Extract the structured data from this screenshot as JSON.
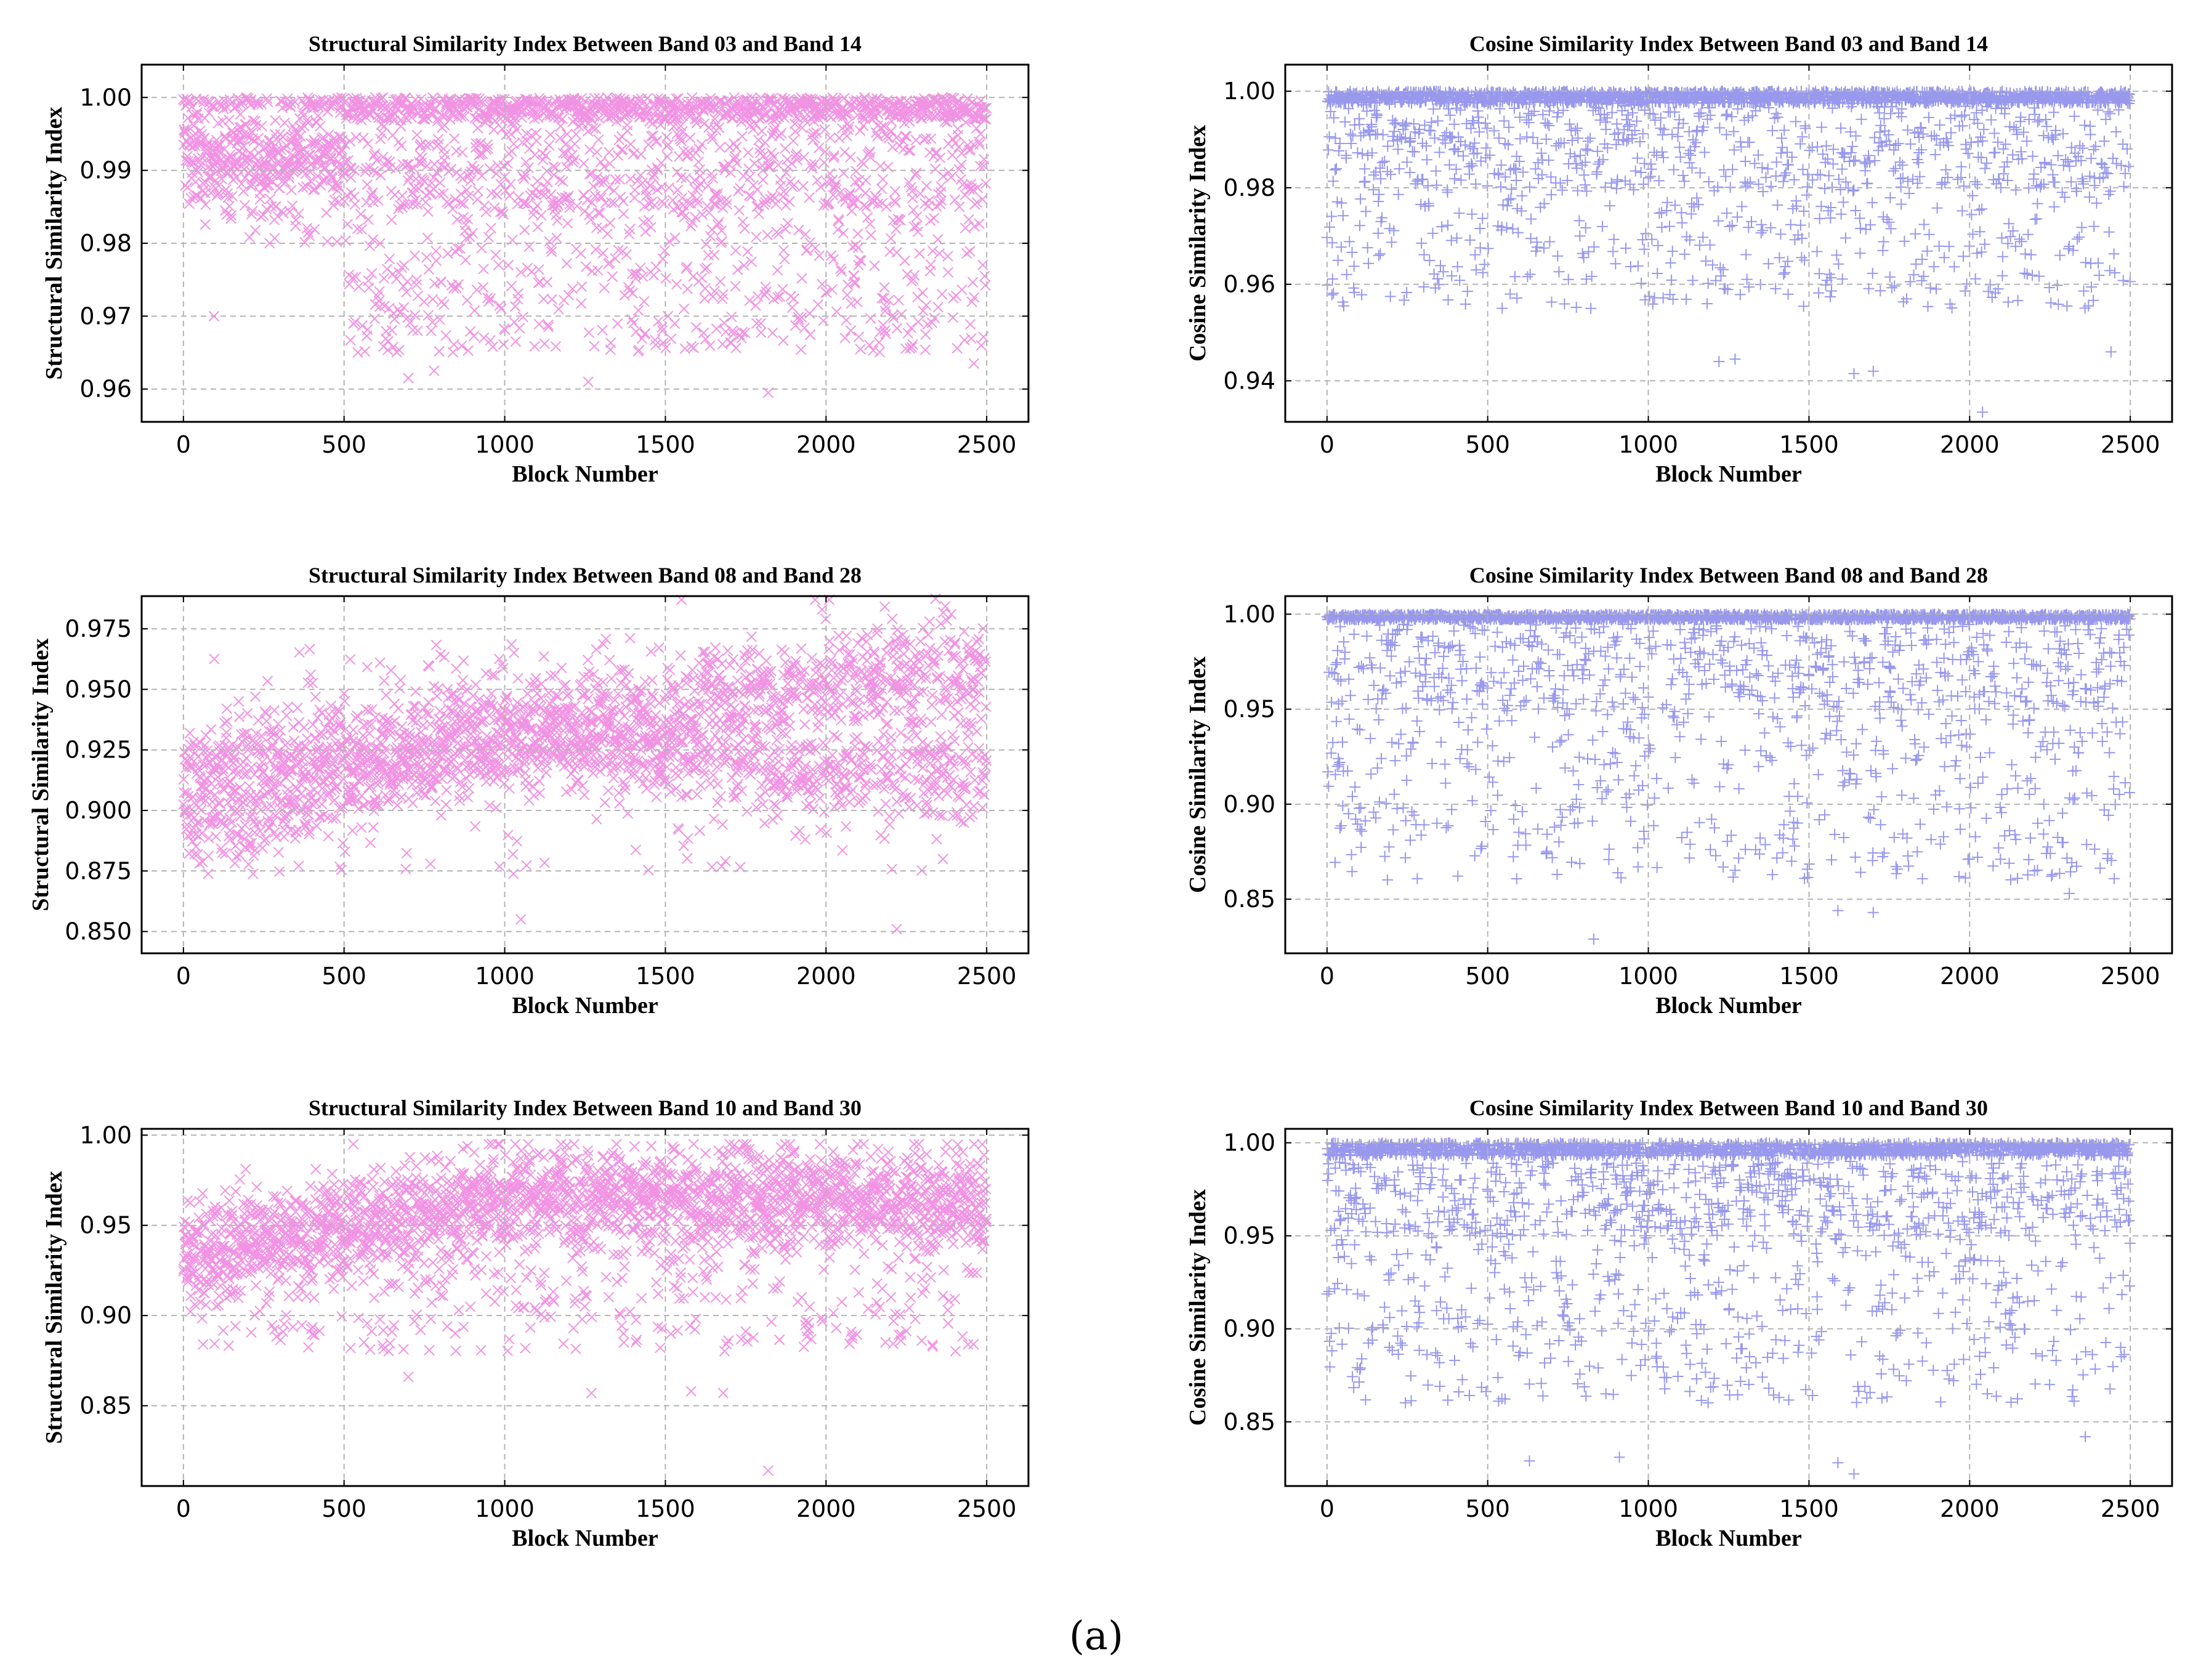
{
  "figure_caption": "(a)",
  "colors": {
    "ssim": "#e010c0",
    "cosine": "#1a1ad8",
    "grid": "#b4b4b4",
    "axis": "#000000"
  },
  "chart_data": [
    {
      "type": "scatter",
      "marker": "x",
      "color_key": "ssim",
      "title": "Structural Similarity Index Between Band 03 and Band 14",
      "xlabel": "Block Number",
      "ylabel": "Structural Similarity Index",
      "xlim": [
        -130,
        2630
      ],
      "ylim": [
        0.9555,
        1.0045
      ],
      "xticks": [
        0,
        500,
        1000,
        1500,
        2000,
        2500
      ],
      "yticks": [
        0.96,
        0.97,
        0.98,
        0.99,
        1.0
      ],
      "ytick_labels": [
        "0.96",
        "0.97",
        "0.98",
        "0.99",
        "1.00"
      ],
      "n_points": 2500,
      "pattern": "Early blocks 0-500 cluster at 0.985-0.995; dense band of points near 0.998-1.000 across all blocks; widely scattered values between 0.965 and 0.99 after block 500",
      "outliers": [
        [
          95,
          0.97
        ],
        [
          700,
          0.9615
        ],
        [
          780,
          0.9625
        ],
        [
          1260,
          0.961
        ],
        [
          1820,
          0.9595
        ],
        [
          2460,
          0.9635
        ]
      ],
      "grid": true
    },
    {
      "type": "scatter",
      "marker": "+",
      "color_key": "cosine",
      "title": "Cosine Similarity Index Between Band 03 and Band 14",
      "xlabel": "Block Number",
      "ylabel": "Cosine Similarity Index",
      "xlim": [
        -130,
        2630
      ],
      "ylim": [
        0.9315,
        1.0055
      ],
      "xticks": [
        0,
        500,
        1000,
        1500,
        2000,
        2500
      ],
      "yticks": [
        0.94,
        0.96,
        0.98,
        1.0
      ],
      "ytick_labels": [
        "0.94",
        "0.96",
        "0.98",
        "1.00"
      ],
      "n_points": 2500,
      "pattern": "Most blocks at 0.998-1.000; scattered values mostly between 0.96 and 0.995",
      "outliers": [
        [
          1220,
          0.944
        ],
        [
          1270,
          0.9445
        ],
        [
          1640,
          0.9415
        ],
        [
          1700,
          0.942
        ],
        [
          2040,
          0.9335
        ],
        [
          2440,
          0.946
        ]
      ],
      "grid": true
    },
    {
      "type": "scatter",
      "marker": "x",
      "color_key": "ssim",
      "title": "Structural Similarity Index Between Band 08 and Band 28",
      "xlabel": "Block Number",
      "ylabel": "Structural Similarity Index",
      "xlim": [
        -130,
        2630
      ],
      "ylim": [
        0.841,
        0.9885
      ],
      "xticks": [
        0,
        500,
        1000,
        1500,
        2000,
        2500
      ],
      "yticks": [
        0.85,
        0.875,
        0.9,
        0.925,
        0.95,
        0.975
      ],
      "ytick_labels": [
        "0.850",
        "0.875",
        "0.900",
        "0.925",
        "0.950",
        "0.975"
      ],
      "n_points": 2500,
      "pattern": "Two diverging bands: an upper band rising from about 0.915 at block 0 to about 0.96 at block 2500, and a lower band from about 0.89 rising to about 0.93 near block 1000 then about 0.915 after block 1800",
      "outliers": [
        [
          1050,
          0.855
        ],
        [
          2220,
          0.851
        ],
        [
          1550,
          0.987
        ]
      ],
      "grid": true
    },
    {
      "type": "scatter",
      "marker": "+",
      "color_key": "cosine",
      "title": "Cosine Similarity Index Between Band 08 and Band 28",
      "xlabel": "Block Number",
      "ylabel": "Cosine Similarity Index",
      "xlim": [
        -130,
        2630
      ],
      "ylim": [
        0.8215,
        1.0095
      ],
      "xticks": [
        0,
        500,
        1000,
        1500,
        2000,
        2500
      ],
      "yticks": [
        0.85,
        0.9,
        0.95,
        1.0
      ],
      "ytick_labels": [
        "0.85",
        "0.90",
        "0.95",
        "1.00"
      ],
      "n_points": 2500,
      "pattern": "Most blocks at 0.998-1.000; widely scattered values between 0.85 and 0.99",
      "outliers": [
        [
          830,
          0.829
        ],
        [
          1590,
          0.844
        ],
        [
          1700,
          0.843
        ],
        [
          2310,
          0.853
        ]
      ],
      "grid": true
    },
    {
      "type": "scatter",
      "marker": "x",
      "color_key": "ssim",
      "title": "Structural Similarity Index Between Band 10 and Band 30",
      "xlabel": "Block Number",
      "ylabel": "Structural Similarity Index",
      "xlim": [
        -130,
        2630
      ],
      "ylim": [
        0.8055,
        1.0035
      ],
      "xticks": [
        0,
        500,
        1000,
        1500,
        2000,
        2500
      ],
      "yticks": [
        0.85,
        0.9,
        0.95,
        1.0
      ],
      "ytick_labels": [
        "0.85",
        "0.90",
        "0.95",
        "1.00"
      ],
      "n_points": 2500,
      "pattern": "Dense band rising from about 0.935 at block 0 to about 0.965 around block 1000 and staying near 0.96 to block 2500; scattered points down to about 0.86",
      "outliers": [
        [
          1820,
          0.814
        ],
        [
          1580,
          0.858
        ],
        [
          1680,
          0.857
        ],
        [
          1270,
          0.857
        ],
        [
          700,
          0.866
        ]
      ],
      "grid": true
    },
    {
      "type": "scatter",
      "marker": "+",
      "color_key": "cosine",
      "title": "Cosine Similarity Index Between Band 10 and Band 30",
      "xlabel": "Block Number",
      "ylabel": "Cosine Similarity Index",
      "xlim": [
        -130,
        2630
      ],
      "ylim": [
        0.8155,
        1.0075
      ],
      "xticks": [
        0,
        500,
        1000,
        1500,
        2000,
        2500
      ],
      "yticks": [
        0.85,
        0.9,
        0.95,
        1.0
      ],
      "ytick_labels": [
        "0.85",
        "0.90",
        "0.95",
        "1.00"
      ],
      "n_points": 2500,
      "pattern": "Most blocks at 0.995-1.000; scattered values between 0.85 and 0.99",
      "outliers": [
        [
          1640,
          0.822
        ],
        [
          1590,
          0.828
        ],
        [
          630,
          0.829
        ],
        [
          2360,
          0.842
        ],
        [
          910,
          0.831
        ]
      ],
      "grid": true
    }
  ]
}
